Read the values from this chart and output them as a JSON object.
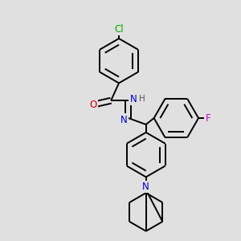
{
  "bg_color": "#e0e0e0",
  "bond_color": "#000000",
  "bond_width": 1.4,
  "atom_labels": {
    "Cl": {
      "color": "#00aa00"
    },
    "O": {
      "color": "#cc0000"
    },
    "N": {
      "color": "#0000cc"
    },
    "H": {
      "color": "#555555"
    },
    "F": {
      "color": "#cc00cc"
    }
  },
  "fontsize": 8.5
}
